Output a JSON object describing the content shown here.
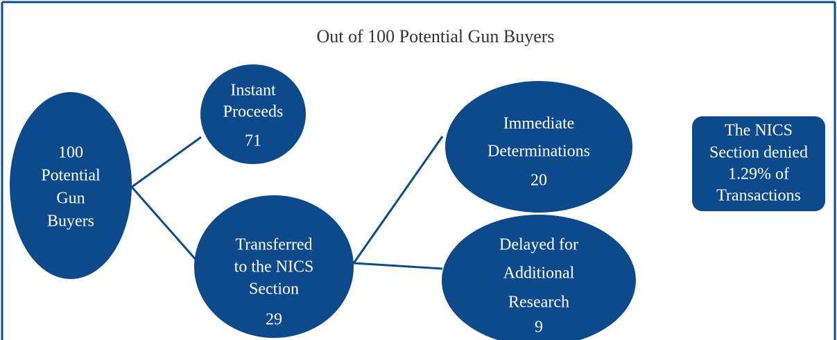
{
  "title": "Out of 100 Potential Gun Buyers",
  "nodes": [
    {
      "lines": [
        "100",
        "Potential",
        "Gun",
        "Buyers"
      ]
    },
    {
      "lines": [
        "Instant",
        "Proceeds"
      ],
      "value": 71
    },
    {
      "lines": [
        "Transferred",
        "to the NICS",
        "Section"
      ],
      "value": 29
    },
    {
      "lines": [
        "Immediate",
        "Determinations"
      ],
      "value": 20
    },
    {
      "lines": [
        "Delayed for",
        "Additional",
        "Research"
      ],
      "value": 9
    }
  ],
  "note": {
    "lines": [
      "The NICS",
      "Section denied",
      "1.29% of",
      "Transactions"
    ]
  }
}
